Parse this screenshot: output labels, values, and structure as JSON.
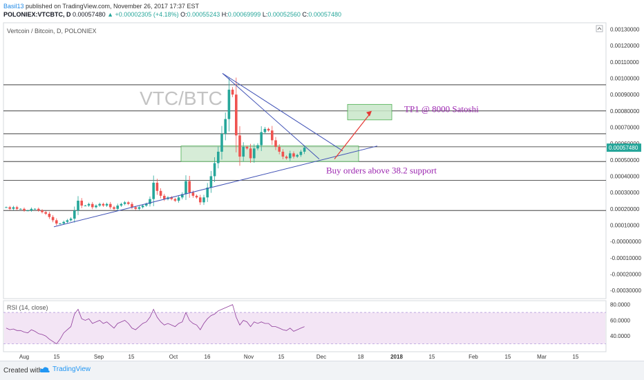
{
  "header": {
    "author": "Basil13",
    "published": "published on TradingView.com, November 26, 2017 17:37 EST",
    "symbol": "POLONIEX:VTCBTC, D",
    "price": "0.00057480",
    "change": "+0.00002305 (+4.18%)",
    "ohlc": {
      "O": "0.00055243",
      "H": "0.00069999",
      "L": "0.00052560",
      "C": "0.00057480"
    }
  },
  "chart_data": {
    "type": "candlestick",
    "title": "Vertcoin / Bitcoin, D, POLONIEX",
    "watermark": "VTC/BTC",
    "x_tick_labels": [
      "Aug",
      "15",
      "Sep",
      "15",
      "Oct",
      "16",
      "Nov",
      "15",
      "Dec",
      "18",
      "2018",
      "15",
      "Feb",
      "15",
      "Mar",
      "15"
    ],
    "y_tick_labels": [
      "0.00130000",
      "0.00120000",
      "0.00110000",
      "0.00100000",
      "0.00090000",
      "0.00080000",
      "0.00070000",
      "0.00060000",
      "0.00050000",
      "0.00040000",
      "0.00030000",
      "0.00020000",
      "0.00010000",
      "-0.00000000",
      "-0.00010000",
      "-0.00020000",
      "-0.00030000"
    ],
    "ylim": [
      -0.00035,
      0.00134
    ],
    "last_price_label": "0.00057480",
    "horizontal_levels": [
      0.00096,
      0.0008,
      0.00066,
      0.00058,
      0.00049,
      0.000375,
      0.00019
    ],
    "close_series": [
      0.00021,
      0.0002,
      0.00021,
      0.0002,
      0.0002,
      0.00019,
      0.00019,
      0.0002,
      0.0002,
      0.00019,
      0.00018,
      0.00017,
      0.00015,
      0.00013,
      0.00011,
      0.00011,
      0.00012,
      0.00013,
      0.00014,
      0.00019,
      0.00025,
      0.00022,
      0.00022,
      0.00023,
      0.00021,
      0.00022,
      0.00023,
      0.00022,
      0.00023,
      0.00021,
      0.0002,
      0.00022,
      0.00023,
      0.00024,
      0.00023,
      0.00021,
      0.0002,
      0.00021,
      0.00022,
      0.00023,
      0.00026,
      0.00036,
      0.00031,
      0.00028,
      0.00026,
      0.00027,
      0.00026,
      0.00025,
      0.00027,
      0.00029,
      0.00037,
      0.0003,
      0.00028,
      0.00027,
      0.00024,
      0.00027,
      0.00033,
      0.0004,
      0.00048,
      0.00055,
      0.00066,
      0.00075,
      0.00093,
      0.0009,
      0.00065,
      0.00052,
      0.00058,
      0.00057,
      0.00051,
      0.00057,
      0.00059,
      0.00067,
      0.00069,
      0.00068,
      0.00062,
      0.00058,
      0.00055,
      0.00052,
      0.00051,
      0.00054,
      0.00052,
      0.00053,
      0.00055,
      0.000575
    ],
    "rsi": {
      "label": "RSI (14, close)",
      "tick_labels": [
        "80.0000",
        "60.0000",
        "40.0000"
      ],
      "ylim": [
        20,
        85
      ],
      "band": [
        30,
        70
      ],
      "values": [
        50,
        48,
        49,
        47,
        47,
        45,
        44,
        48,
        46,
        43,
        42,
        40,
        36,
        33,
        30,
        36,
        44,
        48,
        52,
        68,
        74,
        62,
        60,
        62,
        56,
        58,
        60,
        56,
        58,
        54,
        50,
        56,
        58,
        60,
        56,
        50,
        48,
        52,
        56,
        58,
        64,
        74,
        64,
        58,
        54,
        56,
        54,
        52,
        56,
        58,
        70,
        60,
        56,
        54,
        48,
        56,
        62,
        66,
        68,
        72,
        74,
        76,
        78,
        80,
        64,
        54,
        60,
        58,
        52,
        58,
        56,
        58,
        56,
        56,
        52,
        52,
        50,
        48,
        47,
        50,
        46,
        48,
        50,
        52
      ]
    },
    "annotations": {
      "tp_text": "TP1 @ 8000 Satoshi",
      "buy_text": "Buy orders above 38.2 support"
    }
  },
  "footer": {
    "created_with": "Created with",
    "brand": "TradingView"
  },
  "colors": {
    "up": "#26a69a",
    "down": "#ef5350",
    "trend": "#3f51b5",
    "annotation_text": "#9c27b0",
    "arrow": "#e53935",
    "box_fill": "#c8e6c9",
    "box_stroke": "#4caf50",
    "rsi_band": "#f3e5f5",
    "rsi_line": "#8e3b9a"
  }
}
